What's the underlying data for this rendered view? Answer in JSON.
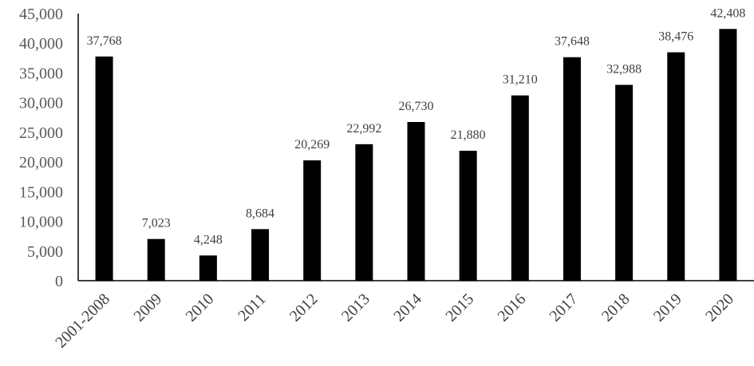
{
  "chart_data": {
    "type": "bar",
    "title": "",
    "xlabel": "",
    "ylabel": "",
    "ylim": [
      0,
      45000
    ],
    "yticks": [
      0,
      5000,
      10000,
      15000,
      20000,
      25000,
      30000,
      35000,
      40000,
      45000
    ],
    "ytick_labels": [
      "0",
      "5,000",
      "10,000",
      "15,000",
      "20,000",
      "25,000",
      "30,000",
      "35,000",
      "40,000",
      "45,000"
    ],
    "grid": false,
    "legend": "none",
    "bar_color": "#000000",
    "categories": [
      "2001-2008",
      "2009",
      "2010",
      "2011",
      "2012",
      "2013",
      "2014",
      "2015",
      "2016",
      "2017",
      "2018",
      "2019",
      "2020"
    ],
    "values": [
      37768,
      7023,
      4248,
      8684,
      20269,
      22992,
      26730,
      21880,
      31210,
      37648,
      32988,
      38476,
      42408
    ],
    "value_labels": [
      "37,768",
      "7,023",
      "4,248",
      "8,684",
      "20,269",
      "22,992",
      "26,730",
      "21,880",
      "31,210",
      "37,648",
      "32,988",
      "38,476",
      "42,408"
    ]
  }
}
